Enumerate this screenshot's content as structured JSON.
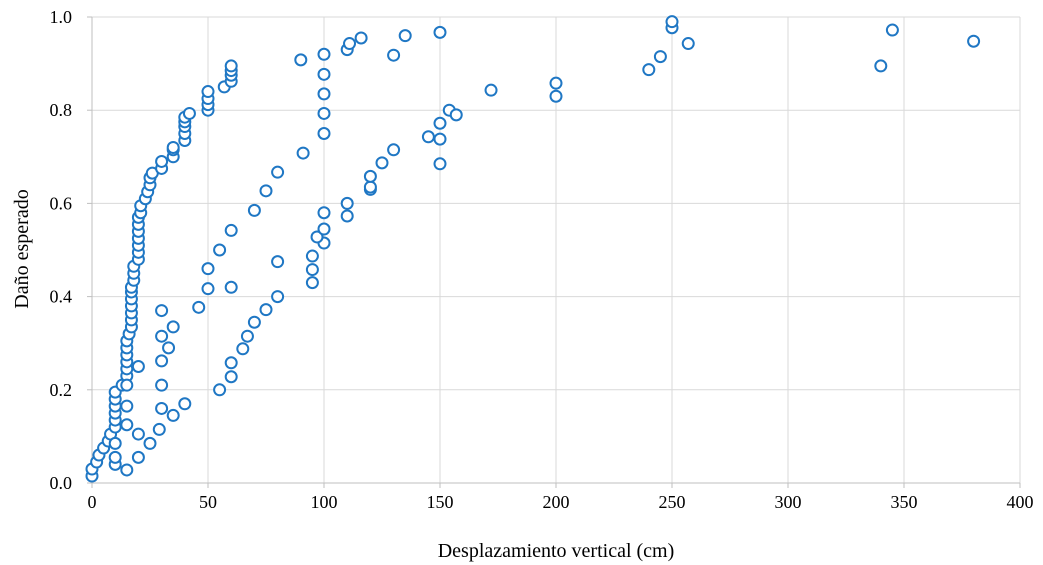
{
  "chart_data": {
    "type": "scatter",
    "title": "",
    "xlabel": "Desplazamiento vertical (cm)",
    "ylabel": "Daño esperado",
    "xlim": [
      0,
      400
    ],
    "ylim": [
      0,
      1.0
    ],
    "xticks": [
      0,
      50,
      100,
      150,
      200,
      250,
      300,
      350,
      400
    ],
    "yticks": [
      0.0,
      0.2,
      0.4,
      0.6,
      0.8,
      1.0
    ],
    "xtick_labels": [
      "0",
      "50",
      "100",
      "150",
      "200",
      "250",
      "300",
      "350",
      "400"
    ],
    "ytick_labels": [
      "0.0",
      "0.2",
      "0.4",
      "0.6",
      "0.8",
      "1.0"
    ],
    "grid": true,
    "legend": false,
    "marker_color": "#1f77c4",
    "series": [
      {
        "points": [
          [
            0,
            0.015
          ],
          [
            0,
            0.03
          ],
          [
            2,
            0.045
          ],
          [
            3,
            0.06
          ],
          [
            5,
            0.075
          ],
          [
            7,
            0.09
          ],
          [
            8,
            0.105
          ],
          [
            10,
            0.12
          ],
          [
            10,
            0.135
          ],
          [
            10,
            0.15
          ],
          [
            10,
            0.165
          ],
          [
            10,
            0.18
          ],
          [
            10,
            0.195
          ],
          [
            13,
            0.21
          ],
          [
            15,
            0.23
          ],
          [
            15,
            0.245
          ],
          [
            15,
            0.26
          ],
          [
            15,
            0.275
          ],
          [
            15,
            0.29
          ],
          [
            15,
            0.305
          ],
          [
            16,
            0.32
          ],
          [
            17,
            0.335
          ],
          [
            17,
            0.35
          ],
          [
            17,
            0.365
          ],
          [
            17,
            0.38
          ],
          [
            17,
            0.395
          ],
          [
            17,
            0.41
          ],
          [
            17,
            0.42
          ],
          [
            18,
            0.435
          ],
          [
            18,
            0.45
          ],
          [
            18,
            0.465
          ],
          [
            20,
            0.48
          ],
          [
            20,
            0.495
          ],
          [
            20,
            0.51
          ],
          [
            20,
            0.525
          ],
          [
            20,
            0.54
          ],
          [
            20,
            0.555
          ],
          [
            20,
            0.57
          ],
          [
            21,
            0.58
          ],
          [
            21,
            0.595
          ],
          [
            23,
            0.61
          ],
          [
            24,
            0.625
          ],
          [
            25,
            0.64
          ],
          [
            25,
            0.655
          ],
          [
            26,
            0.665
          ],
          [
            30,
            0.675
          ],
          [
            30,
            0.69
          ],
          [
            35,
            0.7
          ],
          [
            35,
            0.715
          ],
          [
            35,
            0.72
          ],
          [
            40,
            0.735
          ],
          [
            40,
            0.75
          ],
          [
            40,
            0.765
          ],
          [
            40,
            0.775
          ],
          [
            40,
            0.785
          ],
          [
            42,
            0.793
          ],
          [
            50,
            0.8
          ],
          [
            50,
            0.812
          ],
          [
            50,
            0.825
          ],
          [
            50,
            0.84
          ],
          [
            57,
            0.85
          ],
          [
            60,
            0.862
          ],
          [
            60,
            0.875
          ],
          [
            60,
            0.885
          ],
          [
            60,
            0.895
          ],
          [
            90,
            0.908
          ],
          [
            100,
            0.92
          ],
          [
            110,
            0.93
          ],
          [
            111,
            0.943
          ],
          [
            116,
            0.955
          ],
          [
            130,
            0.918
          ],
          [
            135,
            0.96
          ],
          [
            150,
            0.967
          ],
          [
            250,
            0.977
          ],
          [
            250,
            0.99
          ],
          [
            245,
            0.915
          ],
          [
            240,
            0.887
          ],
          [
            257,
            0.943
          ],
          [
            345,
            0.972
          ],
          [
            380,
            0.948
          ],
          [
            340,
            0.895
          ],
          [
            10,
            0.04
          ],
          [
            10,
            0.055
          ],
          [
            15,
            0.028
          ],
          [
            20,
            0.055
          ],
          [
            10,
            0.085
          ],
          [
            20,
            0.105
          ],
          [
            15,
            0.125
          ],
          [
            25,
            0.085
          ],
          [
            29,
            0.115
          ],
          [
            15,
            0.165
          ],
          [
            20,
            0.25
          ],
          [
            15,
            0.21
          ],
          [
            30,
            0.16
          ],
          [
            35,
            0.145
          ],
          [
            40,
            0.17
          ],
          [
            30,
            0.21
          ],
          [
            30,
            0.262
          ],
          [
            30,
            0.315
          ],
          [
            33,
            0.29
          ],
          [
            35,
            0.335
          ],
          [
            30,
            0.37
          ],
          [
            55,
            0.2
          ],
          [
            60,
            0.228
          ],
          [
            60,
            0.258
          ],
          [
            65,
            0.288
          ],
          [
            67,
            0.315
          ],
          [
            70,
            0.345
          ],
          [
            75,
            0.372
          ],
          [
            80,
            0.4
          ],
          [
            46,
            0.377
          ],
          [
            50,
            0.417
          ],
          [
            60,
            0.42
          ],
          [
            50,
            0.46
          ],
          [
            55,
            0.5
          ],
          [
            60,
            0.542
          ],
          [
            70,
            0.585
          ],
          [
            75,
            0.627
          ],
          [
            80,
            0.667
          ],
          [
            91,
            0.708
          ],
          [
            80,
            0.475
          ],
          [
            95,
            0.43
          ],
          [
            95,
            0.458
          ],
          [
            95,
            0.487
          ],
          [
            100,
            0.515
          ],
          [
            97,
            0.528
          ],
          [
            100,
            0.545
          ],
          [
            100,
            0.58
          ],
          [
            110,
            0.573
          ],
          [
            110,
            0.6
          ],
          [
            120,
            0.63
          ],
          [
            120,
            0.635
          ],
          [
            120,
            0.658
          ],
          [
            125,
            0.687
          ],
          [
            130,
            0.715
          ],
          [
            100,
            0.75
          ],
          [
            100,
            0.793
          ],
          [
            100,
            0.835
          ],
          [
            100,
            0.877
          ],
          [
            145,
            0.743
          ],
          [
            150,
            0.738
          ],
          [
            150,
            0.772
          ],
          [
            154,
            0.8
          ],
          [
            157,
            0.79
          ],
          [
            150,
            0.685
          ],
          [
            172,
            0.843
          ],
          [
            200,
            0.83
          ],
          [
            200,
            0.858
          ]
        ]
      }
    ]
  }
}
